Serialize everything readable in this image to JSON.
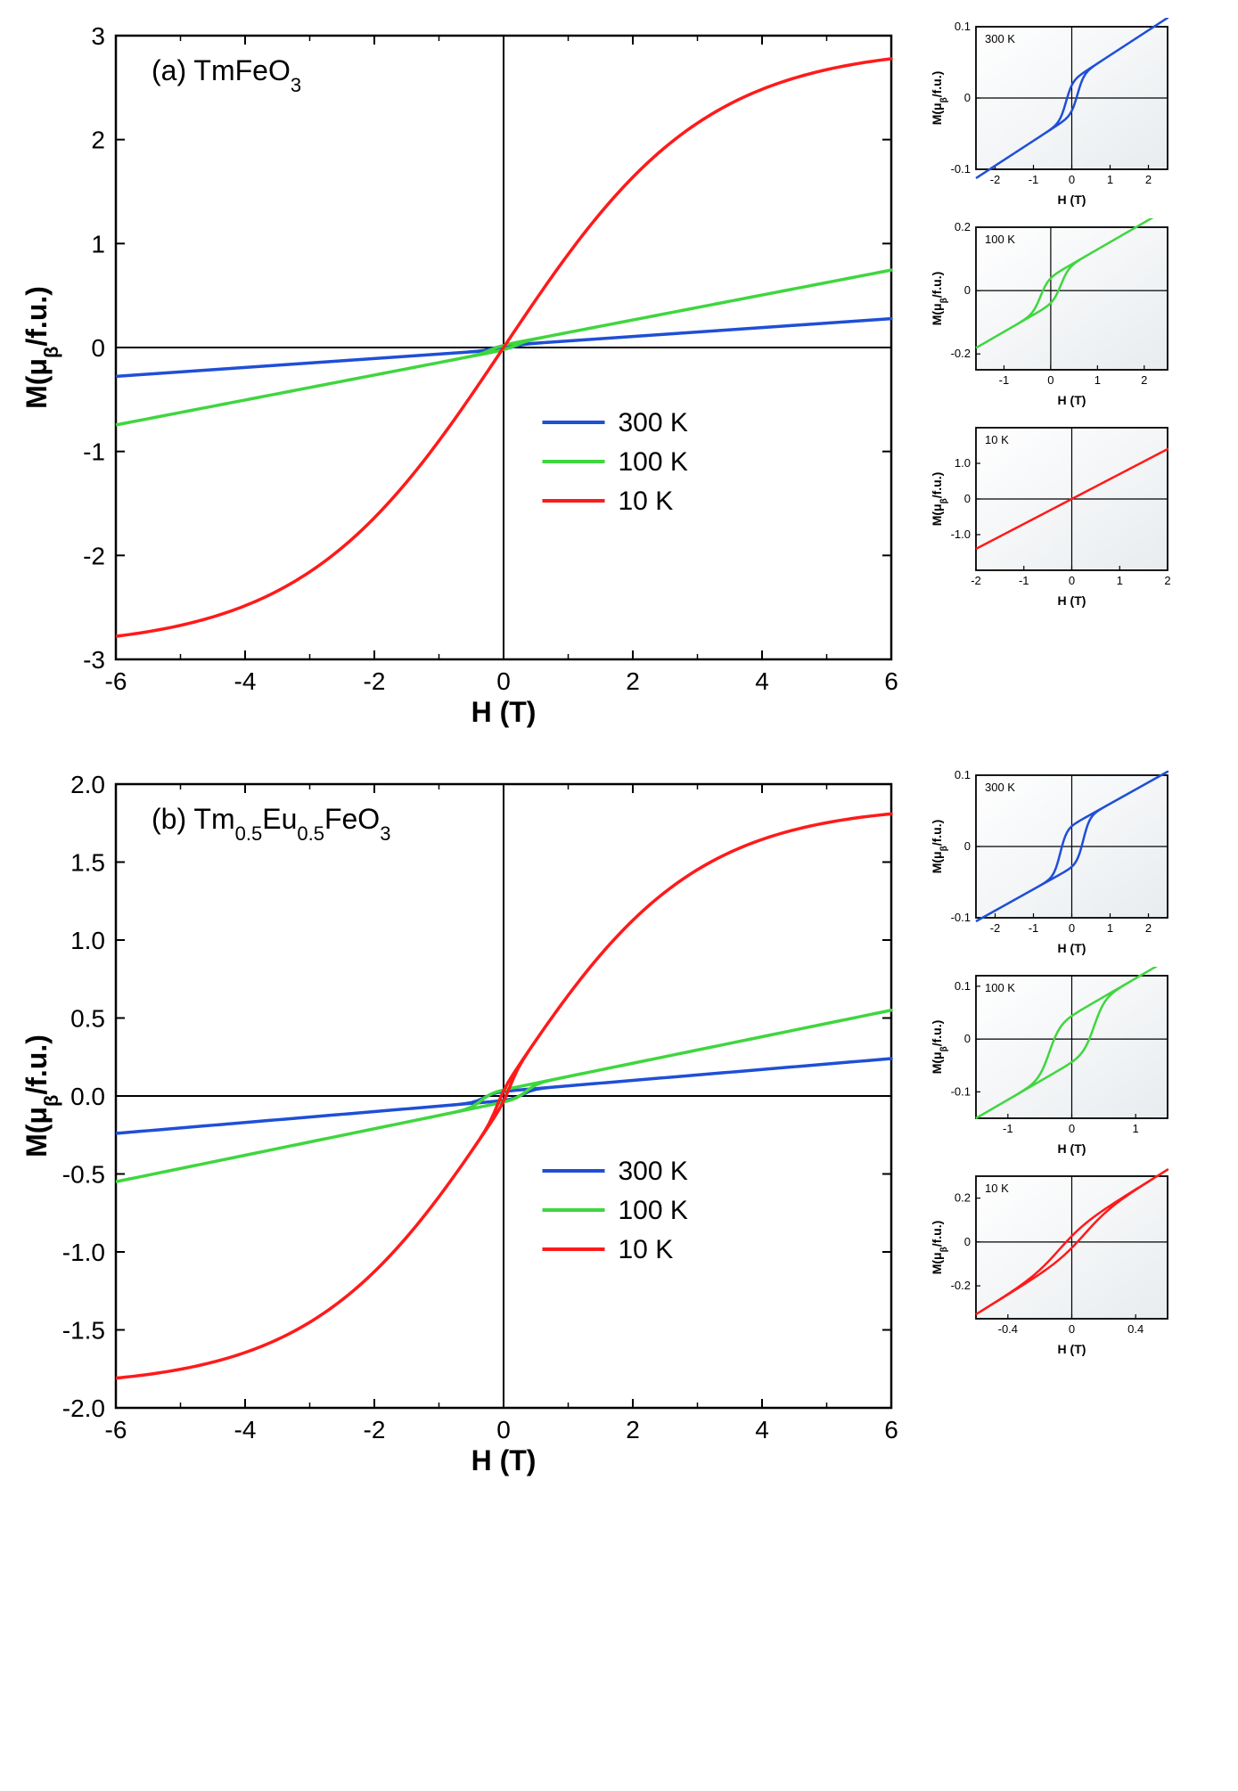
{
  "colors": {
    "s300": "#1f4fd6",
    "s100": "#3fd63f",
    "s10": "#ff1a1a",
    "axis": "#000000",
    "bg": "#ffffff",
    "insetGradFrom": "#ffffff",
    "insetGradTo": "#e8ecef"
  },
  "panelA": {
    "label": "(a)  TmFeO",
    "labelSub": "3",
    "xlabel": "H (T)",
    "ylabel": "M(μ",
    "ylabelSub": "β",
    "ylabelTail": "/f.u.)",
    "xlim": [
      -6,
      6
    ],
    "ylim": [
      -3,
      3
    ],
    "xticks": [
      -6,
      -4,
      -2,
      0,
      2,
      4,
      6
    ],
    "yticks": [
      -3,
      -2,
      -1,
      0,
      1,
      2,
      3
    ],
    "legend": [
      {
        "color": "s300",
        "label": "300 K"
      },
      {
        "color": "s100",
        "label": "100 K"
      },
      {
        "color": "s10",
        "label": "10 K"
      }
    ],
    "s300": {
      "slope": 0.043,
      "step": 0.02
    },
    "s100": {
      "slope": 0.12,
      "step": 0.025
    },
    "s10_tanh": {
      "A": 2.9,
      "k": 0.32
    },
    "insets": [
      {
        "label": "300 K",
        "color": "s300",
        "xlim": [
          -2.5,
          2.5
        ],
        "ylim": [
          -0.1,
          0.1
        ],
        "xticks": [
          -2,
          -1,
          0,
          1,
          2
        ],
        "yticks": [
          -0.1,
          0,
          0.1
        ],
        "slope": 0.035,
        "step": 0.025,
        "Hc": 0.15
      },
      {
        "label": "100 K",
        "color": "s100",
        "xlim": [
          -1.6,
          2.5
        ],
        "ylim": [
          -0.25,
          0.2
        ],
        "xticks": [
          -1,
          0,
          1,
          2
        ],
        "yticks": [
          -0.2,
          0,
          0.2
        ],
        "slope": 0.085,
        "step": 0.045,
        "Hc": 0.22
      },
      {
        "label": "10 K",
        "color": "s10",
        "xlim": [
          -2,
          2
        ],
        "ylim": [
          -2,
          2
        ],
        "xticks": [
          -2,
          -1,
          0,
          1,
          2
        ],
        "yticks": [
          -1,
          0,
          1
        ],
        "slope": 0.7,
        "step": 0.0,
        "Hc": 0.0
      }
    ]
  },
  "panelB": {
    "label": "(b)  Tm",
    "labelSub1": "0.5",
    "labelMid": "Eu",
    "labelSub2": "0.5",
    "labelTail": "FeO",
    "labelSub3": "3",
    "xlabel": "H (T)",
    "ylabel": "M(μ",
    "ylabelSub": "β",
    "ylabelTail": "/f.u.)",
    "xlim": [
      -6,
      6
    ],
    "ylim": [
      -2.0,
      2.0
    ],
    "xticks": [
      -6,
      -4,
      -2,
      0,
      2,
      4,
      6
    ],
    "yticks": [
      -2.0,
      -1.5,
      -1.0,
      -0.5,
      0.0,
      0.5,
      1.0,
      1.5,
      2.0
    ],
    "legend": [
      {
        "color": "s300",
        "label": "300 K"
      },
      {
        "color": "s100",
        "label": "100 K"
      },
      {
        "color": "s10",
        "label": "10 K"
      }
    ],
    "s300": {
      "slope": 0.035,
      "step": 0.03,
      "Hc": 0.3
    },
    "s100": {
      "slope": 0.085,
      "step": 0.04,
      "Hc": 0.35
    },
    "s10_tanh": {
      "A": 1.82,
      "k": 0.34,
      "step": 0.05,
      "Hc": 0.1
    },
    "insets": [
      {
        "label": "300 K",
        "color": "s300",
        "xlim": [
          -2.5,
          2.5
        ],
        "ylim": [
          -0.1,
          0.1
        ],
        "xticks": [
          -2,
          -1,
          0,
          1,
          2
        ],
        "yticks": [
          -0.1,
          0,
          0.1
        ],
        "slope": 0.03,
        "step": 0.03,
        "Hc": 0.3
      },
      {
        "label": "100 K",
        "color": "s100",
        "xlim": [
          -1.5,
          1.5
        ],
        "ylim": [
          -0.15,
          0.12
        ],
        "xticks": [
          -1,
          0,
          1
        ],
        "yticks": [
          -0.1,
          0,
          0.1
        ],
        "slope": 0.07,
        "step": 0.045,
        "Hc": 0.35
      },
      {
        "label": "10 K",
        "color": "s10",
        "xlim": [
          -0.6,
          0.6
        ],
        "ylim": [
          -0.35,
          0.3
        ],
        "xticks": [
          -0.4,
          0.0,
          0.4
        ],
        "yticks": [
          -0.2,
          0,
          0.2
        ],
        "slope": 0.45,
        "step": 0.06,
        "Hc": 0.08
      }
    ]
  },
  "layout": {
    "mainW": 1000,
    "mainH": 810,
    "mainPad": {
      "l": 110,
      "r": 20,
      "t": 20,
      "b": 90
    },
    "insetW": 280,
    "insetH": 215,
    "insetPad": {
      "l": 55,
      "r": 10,
      "t": 10,
      "b": 45
    }
  }
}
